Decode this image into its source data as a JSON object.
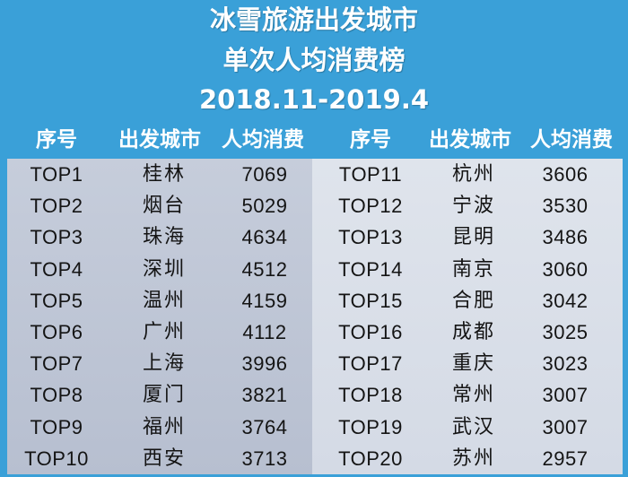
{
  "title": {
    "line1": "冰雪旅游出发城市",
    "line2": "单次人均消费榜",
    "line3": "2018.11-2019.4"
  },
  "headers": {
    "rank": "序号",
    "city": "出发城市",
    "spend": "人均消费"
  },
  "colors": {
    "background": "#3aa0d8",
    "left_panel": "#bfc6d6",
    "right_panel": "#dde2ea",
    "header_text": "#ffffff"
  },
  "left_rows": [
    {
      "rank": "TOP1",
      "city": "桂林",
      "spend": "7069"
    },
    {
      "rank": "TOP2",
      "city": "烟台",
      "spend": "5029"
    },
    {
      "rank": "TOP3",
      "city": "珠海",
      "spend": "4634"
    },
    {
      "rank": "TOP4",
      "city": "深圳",
      "spend": "4512"
    },
    {
      "rank": "TOP5",
      "city": "温州",
      "spend": "4159"
    },
    {
      "rank": "TOP6",
      "city": "广州",
      "spend": "4112"
    },
    {
      "rank": "TOP7",
      "city": "上海",
      "spend": "3996"
    },
    {
      "rank": "TOP8",
      "city": "厦门",
      "spend": "3821"
    },
    {
      "rank": "TOP9",
      "city": "福州",
      "spend": "3764"
    },
    {
      "rank": "TOP10",
      "city": "西安",
      "spend": "3713"
    }
  ],
  "right_rows": [
    {
      "rank": "TOP11",
      "city": "杭州",
      "spend": "3606"
    },
    {
      "rank": "TOP12",
      "city": "宁波",
      "spend": "3530"
    },
    {
      "rank": "TOP13",
      "city": "昆明",
      "spend": "3486"
    },
    {
      "rank": "TOP14",
      "city": "南京",
      "spend": "3060"
    },
    {
      "rank": "TOP15",
      "city": "合肥",
      "spend": "3042"
    },
    {
      "rank": "TOP16",
      "city": "成都",
      "spend": "3025"
    },
    {
      "rank": "TOP17",
      "city": "重庆",
      "spend": "3023"
    },
    {
      "rank": "TOP18",
      "city": "常州",
      "spend": "3007"
    },
    {
      "rank": "TOP19",
      "city": "武汉",
      "spend": "3007"
    },
    {
      "rank": "TOP20",
      "city": "苏州",
      "spend": "2957"
    }
  ]
}
